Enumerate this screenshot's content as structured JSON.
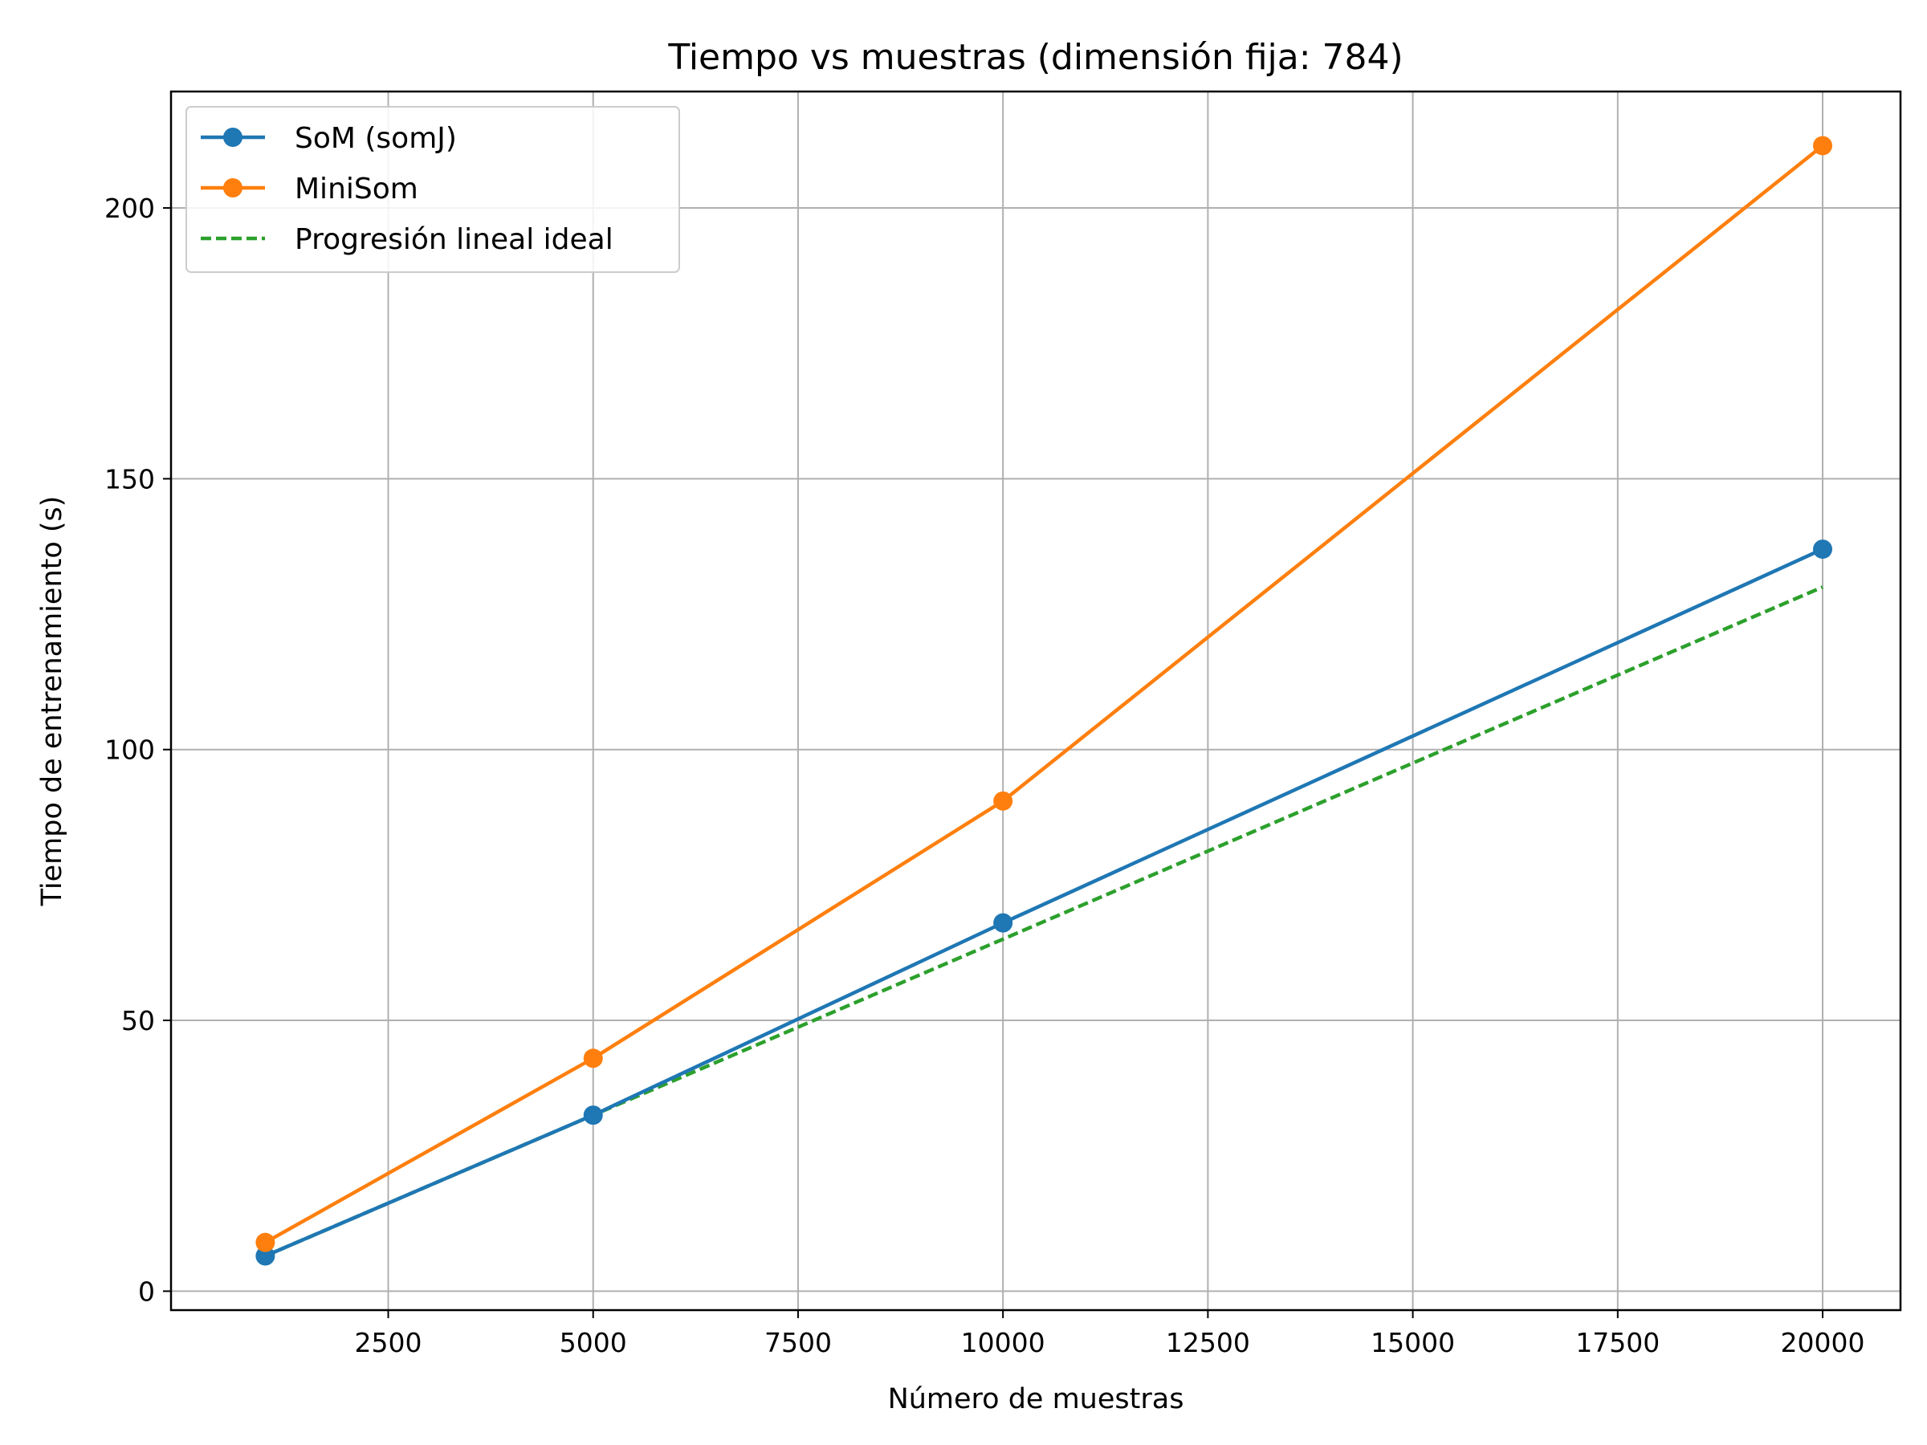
{
  "chart_data": {
    "type": "line",
    "title": "Tiempo vs muestras (dimensión fija: 784)",
    "xlabel": "Número de muestras",
    "ylabel": "Tiempo de entrenamiento (s)",
    "x": [
      1000,
      5000,
      10000,
      20000
    ],
    "xlim": [
      -150,
      20950
    ],
    "ylim": [
      -3.5,
      221.5
    ],
    "xticks": [
      2500,
      5000,
      7500,
      10000,
      12500,
      15000,
      17500,
      20000
    ],
    "yticks": [
      0,
      50,
      100,
      150,
      200
    ],
    "grid": true,
    "legend_position": "top-left",
    "series": [
      {
        "name": "SoM (somJ)",
        "values": [
          6.5,
          32.5,
          68,
          137
        ],
        "color": "#1f77b4",
        "style": "solid",
        "marker": "circle"
      },
      {
        "name": "MiniSom",
        "values": [
          9,
          43,
          90.5,
          211.5
        ],
        "color": "#ff7f0e",
        "style": "solid",
        "marker": "circle"
      },
      {
        "name": "Progresión lineal ideal",
        "values": [
          6.5,
          32.5,
          65,
          130
        ],
        "color": "#2ca02c",
        "style": "dashed",
        "marker": "none"
      }
    ]
  }
}
